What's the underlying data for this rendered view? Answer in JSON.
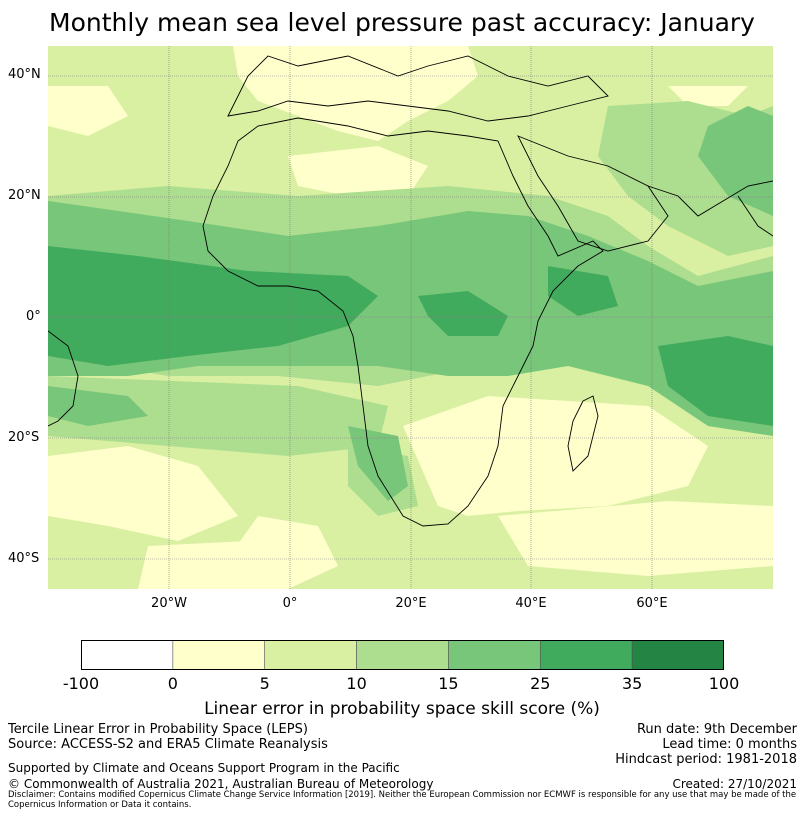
{
  "title": "Monthly mean sea level pressure past accuracy: January",
  "map": {
    "lat_labels": [
      "40°N",
      "20°N",
      "0°",
      "20°S",
      "40°S"
    ],
    "lon_labels": [
      "20°W",
      "0°",
      "20°E",
      "40°E",
      "60°E"
    ]
  },
  "colorbar": {
    "ticks": [
      "-100",
      "0",
      "5",
      "10",
      "15",
      "25",
      "35",
      "100"
    ],
    "colors": [
      "#ffffff",
      "#ffffcc",
      "#d9f0a3",
      "#addd8e",
      "#78c679",
      "#41ab5d",
      "#238443"
    ],
    "label": "Linear error in probability space skill score (%)"
  },
  "info": {
    "method": "Tercile Linear Error in Probability Space (LEPS)",
    "source": "Source: ACCESS-S2 and ERA5 Climate Reanalysis",
    "run_date": "Run date: 9th December",
    "lead_time": "Lead time: 0 months",
    "hindcast": "Hindcast period: 1981-2018",
    "support": "Supported by Climate and Oceans Support Program in the Pacific",
    "copyright": "© Commonwealth of Australia 2021, Australian Bureau of Meteorology",
    "created": "Created: 27/10/2021",
    "disclaimer": "Disclaimer: Contains modified Copernicus Climate Change Service Information [2019]. Neither the European Commission nor ECMWF is responsible for any use that may be made of the Copernicus Information or Data it contains."
  }
}
